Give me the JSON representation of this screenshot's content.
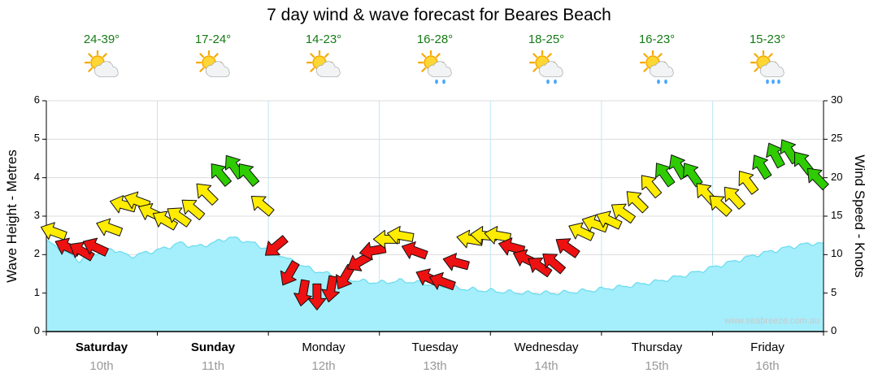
{
  "title": "7 day wind & wave forecast for Beares Beach",
  "watermark": "www.seabreeze.com.au",
  "chart_data": {
    "type": "area",
    "subtype": "wave-area-with-wind-arrows",
    "wave_axis": {
      "label": "Wave Height - Metres",
      "min": 0,
      "max": 6,
      "step": 1
    },
    "wind_axis": {
      "label": "Wind Speed - Knots",
      "min": 0,
      "max": 30,
      "step": 5
    },
    "x_axis": {
      "unit": "days",
      "min": 0,
      "max": 7
    },
    "colors": {
      "wave_fill": "#a5eefb",
      "wave_edge": "#67dcef",
      "temp_text": "#167a16",
      "grid_h": "#dcdcdc",
      "grid_v": "#bfe6f2",
      "wind": {
        "red": "#ee1111",
        "yellow": "#ffec00",
        "green": "#2ecc00"
      }
    },
    "days": [
      {
        "name": "Saturday",
        "date": "10th",
        "temp": "24-39°",
        "icon": "sun-cloud",
        "bold": true
      },
      {
        "name": "Sunday",
        "date": "11th",
        "temp": "17-24°",
        "icon": "sun-cloud",
        "bold": true
      },
      {
        "name": "Monday",
        "date": "12th",
        "temp": "14-23°",
        "icon": "sun-cloud",
        "bold": false
      },
      {
        "name": "Tuesday",
        "date": "13th",
        "temp": "16-28°",
        "icon": "showers",
        "bold": false
      },
      {
        "name": "Wednesday",
        "date": "14th",
        "temp": "18-25°",
        "icon": "showers",
        "bold": false
      },
      {
        "name": "Thursday",
        "date": "15th",
        "temp": "16-23°",
        "icon": "showers",
        "bold": false
      },
      {
        "name": "Friday",
        "date": "16th",
        "temp": "15-23°",
        "icon": "rain",
        "bold": false
      }
    ],
    "wave_series": {
      "name": "Wave Height (metres)",
      "points": [
        {
          "t": 0.0,
          "h": 2.35
        },
        {
          "t": 0.15,
          "h": 2.1
        },
        {
          "t": 0.3,
          "h": 1.85
        },
        {
          "t": 0.45,
          "h": 2.05
        },
        {
          "t": 0.6,
          "h": 2.15
        },
        {
          "t": 0.75,
          "h": 1.95
        },
        {
          "t": 0.9,
          "h": 2.05
        },
        {
          "t": 1.05,
          "h": 2.15
        },
        {
          "t": 1.2,
          "h": 2.3
        },
        {
          "t": 1.35,
          "h": 2.2
        },
        {
          "t": 1.5,
          "h": 2.3
        },
        {
          "t": 1.65,
          "h": 2.45
        },
        {
          "t": 1.8,
          "h": 2.35
        },
        {
          "t": 2.0,
          "h": 2.15
        },
        {
          "t": 2.2,
          "h": 1.85
        },
        {
          "t": 2.4,
          "h": 1.6
        },
        {
          "t": 2.6,
          "h": 1.45
        },
        {
          "t": 2.8,
          "h": 1.32
        },
        {
          "t": 3.0,
          "h": 1.27
        },
        {
          "t": 3.2,
          "h": 1.32
        },
        {
          "t": 3.4,
          "h": 1.25
        },
        {
          "t": 3.6,
          "h": 1.17
        },
        {
          "t": 3.8,
          "h": 1.1
        },
        {
          "t": 4.0,
          "h": 1.06
        },
        {
          "t": 4.3,
          "h": 1.0
        },
        {
          "t": 4.6,
          "h": 1.0
        },
        {
          "t": 4.9,
          "h": 1.07
        },
        {
          "t": 5.2,
          "h": 1.17
        },
        {
          "t": 5.5,
          "h": 1.3
        },
        {
          "t": 5.8,
          "h": 1.5
        },
        {
          "t": 6.1,
          "h": 1.75
        },
        {
          "t": 6.4,
          "h": 2.0
        },
        {
          "t": 6.7,
          "h": 2.2
        },
        {
          "t": 6.9,
          "h": 2.3
        },
        {
          "t": 7.0,
          "h": 2.27
        }
      ]
    },
    "wind_series": {
      "name": "Wind Speed (knots)",
      "points": [
        {
          "t": 0.0625,
          "knots": 13,
          "dir": 200,
          "color": "yellow"
        },
        {
          "t": 0.1875,
          "knots": 11,
          "dir": 205,
          "color": "red"
        },
        {
          "t": 0.3125,
          "knots": 10.5,
          "dir": 210,
          "color": "red"
        },
        {
          "t": 0.4375,
          "knots": 11,
          "dir": 205,
          "color": "red"
        },
        {
          "t": 0.5625,
          "knots": 13.5,
          "dir": 200,
          "color": "yellow"
        },
        {
          "t": 0.6875,
          "knots": 16.5,
          "dir": 195,
          "color": "yellow"
        },
        {
          "t": 0.8125,
          "knots": 17,
          "dir": 200,
          "color": "yellow"
        },
        {
          "t": 0.9375,
          "knots": 15.5,
          "dir": 205,
          "color": "yellow"
        },
        {
          "t": 1.0625,
          "knots": 14.5,
          "dir": 210,
          "color": "yellow"
        },
        {
          "t": 1.1875,
          "knots": 15,
          "dir": 215,
          "color": "yellow"
        },
        {
          "t": 1.3125,
          "knots": 16,
          "dir": 220,
          "color": "yellow"
        },
        {
          "t": 1.4375,
          "knots": 18,
          "dir": 225,
          "color": "yellow"
        },
        {
          "t": 1.5625,
          "knots": 20.5,
          "dir": 230,
          "color": "green"
        },
        {
          "t": 1.6875,
          "knots": 21.5,
          "dir": 235,
          "color": "green"
        },
        {
          "t": 1.8125,
          "knots": 20.5,
          "dir": 230,
          "color": "green"
        },
        {
          "t": 1.9375,
          "knots": 16.5,
          "dir": 220,
          "color": "yellow"
        },
        {
          "t": 2.0625,
          "knots": 11,
          "dir": 140,
          "color": "red"
        },
        {
          "t": 2.1875,
          "knots": 7.5,
          "dir": 120,
          "color": "red"
        },
        {
          "t": 2.3125,
          "knots": 5,
          "dir": 100,
          "color": "red"
        },
        {
          "t": 2.4375,
          "knots": 4.5,
          "dir": 90,
          "color": "red"
        },
        {
          "t": 2.5625,
          "knots": 5.5,
          "dir": 100,
          "color": "red"
        },
        {
          "t": 2.6875,
          "knots": 7,
          "dir": 120,
          "color": "red"
        },
        {
          "t": 2.8125,
          "knots": 9,
          "dir": 150,
          "color": "red"
        },
        {
          "t": 2.9375,
          "knots": 10.5,
          "dir": 170,
          "color": "red"
        },
        {
          "t": 3.0625,
          "knots": 12,
          "dir": 180,
          "color": "yellow"
        },
        {
          "t": 3.1875,
          "knots": 12.5,
          "dir": 190,
          "color": "yellow"
        },
        {
          "t": 3.3125,
          "knots": 10.5,
          "dir": 200,
          "color": "red"
        },
        {
          "t": 3.4375,
          "knots": 7,
          "dir": 205,
          "color": "red"
        },
        {
          "t": 3.5625,
          "knots": 6.5,
          "dir": 200,
          "color": "red"
        },
        {
          "t": 3.6875,
          "knots": 9,
          "dir": 195,
          "color": "red"
        },
        {
          "t": 3.8125,
          "knots": 12,
          "dir": 190,
          "color": "yellow"
        },
        {
          "t": 3.9375,
          "knots": 12.5,
          "dir": 185,
          "color": "yellow"
        },
        {
          "t": 4.0625,
          "knots": 12.5,
          "dir": 190,
          "color": "yellow"
        },
        {
          "t": 4.1875,
          "knots": 11,
          "dir": 195,
          "color": "red"
        },
        {
          "t": 4.3125,
          "knots": 9.5,
          "dir": 205,
          "color": "red"
        },
        {
          "t": 4.4375,
          "knots": 8.5,
          "dir": 215,
          "color": "red"
        },
        {
          "t": 4.5625,
          "knots": 9,
          "dir": 220,
          "color": "red"
        },
        {
          "t": 4.6875,
          "knots": 11,
          "dir": 215,
          "color": "red"
        },
        {
          "t": 4.8125,
          "knots": 13,
          "dir": 205,
          "color": "yellow"
        },
        {
          "t": 4.9375,
          "knots": 14,
          "dir": 200,
          "color": "yellow"
        },
        {
          "t": 5.0625,
          "knots": 14.5,
          "dir": 205,
          "color": "yellow"
        },
        {
          "t": 5.1875,
          "knots": 15.5,
          "dir": 215,
          "color": "yellow"
        },
        {
          "t": 5.3125,
          "knots": 17,
          "dir": 225,
          "color": "yellow"
        },
        {
          "t": 5.4375,
          "knots": 19,
          "dir": 230,
          "color": "yellow"
        },
        {
          "t": 5.5625,
          "knots": 20.5,
          "dir": 235,
          "color": "green"
        },
        {
          "t": 5.6875,
          "knots": 21.5,
          "dir": 240,
          "color": "green"
        },
        {
          "t": 5.8125,
          "knots": 20.5,
          "dir": 235,
          "color": "green"
        },
        {
          "t": 5.9375,
          "knots": 18,
          "dir": 228,
          "color": "yellow"
        },
        {
          "t": 6.0625,
          "knots": 16.5,
          "dir": 222,
          "color": "yellow"
        },
        {
          "t": 6.1875,
          "knots": 17.5,
          "dir": 228,
          "color": "yellow"
        },
        {
          "t": 6.3125,
          "knots": 19.5,
          "dir": 233,
          "color": "yellow"
        },
        {
          "t": 6.4375,
          "knots": 21.5,
          "dir": 238,
          "color": "green"
        },
        {
          "t": 6.5625,
          "knots": 23,
          "dir": 242,
          "color": "green"
        },
        {
          "t": 6.6875,
          "knots": 23.5,
          "dir": 238,
          "color": "green"
        },
        {
          "t": 6.8125,
          "knots": 22,
          "dir": 232,
          "color": "green"
        },
        {
          "t": 6.9375,
          "knots": 20,
          "dir": 226,
          "color": "green"
        }
      ]
    }
  }
}
